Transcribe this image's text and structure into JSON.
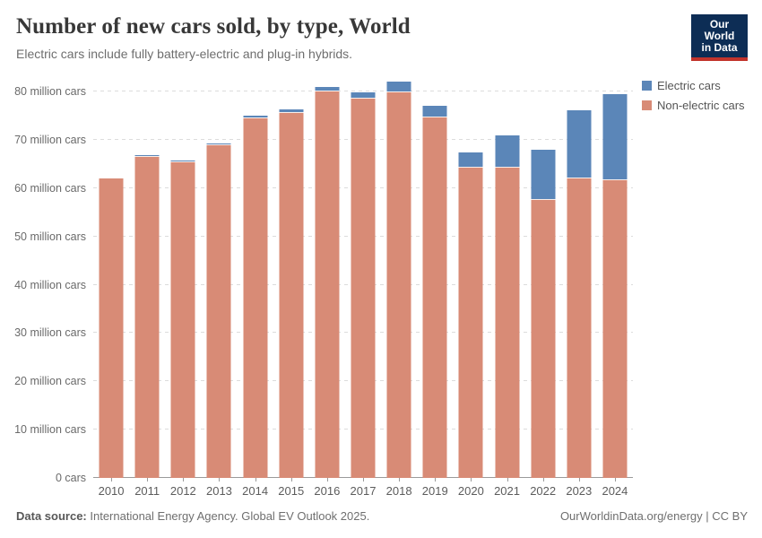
{
  "header": {
    "title": "Number of new cars sold, by type, World",
    "subtitle": "Electric cars include fully battery-electric and plug-in hybrids.",
    "logo": {
      "line1": "Our World",
      "line2": "in Data",
      "bg_color": "#0d2d55",
      "accent_color": "#c2342c"
    }
  },
  "chart_data": {
    "type": "bar",
    "stacked": true,
    "title": "Number of new cars sold, by type, World",
    "xlabel": "",
    "ylabel": "",
    "unit": "million cars",
    "grid": "dashed-horizontal",
    "legend_position": "top-right",
    "ylim": [
      0,
      83.2
    ],
    "categories": [
      "2010",
      "2011",
      "2012",
      "2013",
      "2014",
      "2015",
      "2016",
      "2017",
      "2018",
      "2019",
      "2020",
      "2021",
      "2022",
      "2023",
      "2024"
    ],
    "series": [
      {
        "name": "Electric cars",
        "color": "#5b86b8",
        "values": [
          0.01,
          0.05,
          0.12,
          0.2,
          0.32,
          0.55,
          0.75,
          1.2,
          2.1,
          2.2,
          3.0,
          6.6,
          10.2,
          13.9,
          17.5
        ]
      },
      {
        "name": "Non-electric cars",
        "color": "#d88b76",
        "values": [
          62.0,
          66.9,
          65.6,
          69.1,
          74.7,
          75.8,
          80.3,
          78.7,
          80.0,
          74.9,
          64.4,
          64.4,
          57.8,
          62.2,
          61.9
        ]
      }
    ],
    "yticks": [
      {
        "value": 0,
        "label": "0 cars"
      },
      {
        "value": 10,
        "label": "10 million cars"
      },
      {
        "value": 20,
        "label": "20 million cars"
      },
      {
        "value": 30,
        "label": "30 million cars"
      },
      {
        "value": 40,
        "label": "40 million cars"
      },
      {
        "value": 50,
        "label": "50 million cars"
      },
      {
        "value": 60,
        "label": "60 million cars"
      },
      {
        "value": 70,
        "label": "70 million cars"
      },
      {
        "value": 80,
        "label": "80 million cars"
      }
    ]
  },
  "footer": {
    "source_label": "Data source:",
    "source_text": " International Energy Agency. Global EV Outlook 2025.",
    "right_text": "OurWorldinData.org/energy | CC BY"
  }
}
